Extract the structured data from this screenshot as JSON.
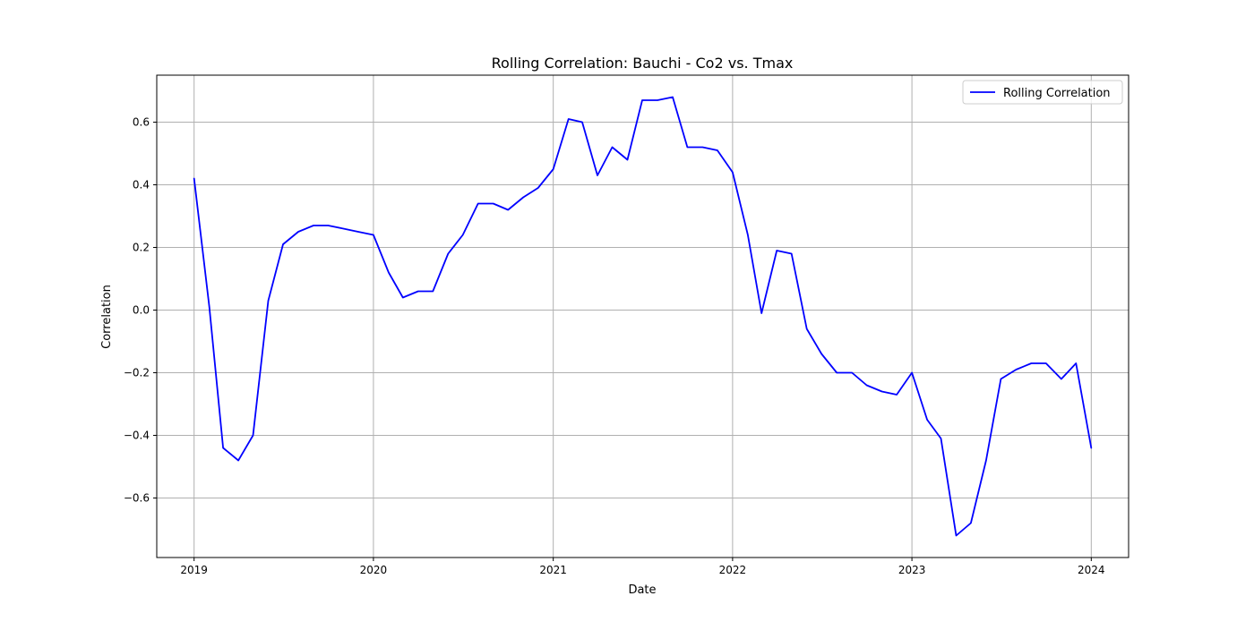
{
  "chart_data": {
    "type": "line",
    "title": "Rolling Correlation: Bauchi - Co2 vs. Tmax",
    "xlabel": "Date",
    "ylabel": "Correlation",
    "xlim": [
      "2018-10-17",
      "2024-03-17"
    ],
    "ylim": [
      -0.79,
      0.75
    ],
    "x_ticks": [
      "2019",
      "2020",
      "2021",
      "2022",
      "2023",
      "2024"
    ],
    "y_ticks": [
      "-0.6",
      "-0.4",
      "-0.2",
      "0.0",
      "0.2",
      "0.4",
      "0.6"
    ],
    "grid": true,
    "legend_position": "top-right",
    "series": [
      {
        "name": "Rolling Correlation",
        "color": "#0000ff",
        "x": [
          "2019-01-01",
          "2019-02-01",
          "2019-03-01",
          "2019-04-01",
          "2019-05-01",
          "2019-06-01",
          "2019-07-01",
          "2019-08-01",
          "2019-09-01",
          "2019-10-01",
          "2019-11-01",
          "2019-12-01",
          "2020-01-01",
          "2020-02-01",
          "2020-03-01",
          "2020-04-01",
          "2020-05-01",
          "2020-06-01",
          "2020-07-01",
          "2020-08-01",
          "2020-09-01",
          "2020-10-01",
          "2020-11-01",
          "2020-12-01",
          "2021-01-01",
          "2021-02-01",
          "2021-03-01",
          "2021-04-01",
          "2021-05-01",
          "2021-06-01",
          "2021-07-01",
          "2021-08-01",
          "2021-09-01",
          "2021-10-01",
          "2021-11-01",
          "2021-12-01",
          "2022-01-01",
          "2022-02-01",
          "2022-03-01",
          "2022-04-01",
          "2022-05-01",
          "2022-06-01",
          "2022-07-01",
          "2022-08-01",
          "2022-09-01",
          "2022-10-01",
          "2022-11-01",
          "2022-12-01",
          "2023-01-01",
          "2023-02-01",
          "2023-03-01",
          "2023-04-01",
          "2023-05-01",
          "2023-06-01",
          "2023-07-01",
          "2023-08-01",
          "2023-09-01",
          "2023-10-01",
          "2023-11-01",
          "2023-12-01",
          "2024-01-01"
        ],
        "y": [
          0.42,
          0.01,
          -0.44,
          -0.48,
          -0.4,
          0.03,
          0.21,
          0.25,
          0.27,
          0.27,
          0.26,
          0.25,
          0.24,
          0.12,
          0.04,
          0.06,
          0.06,
          0.18,
          0.24,
          0.34,
          0.34,
          0.32,
          0.36,
          0.39,
          0.45,
          0.61,
          0.6,
          0.43,
          0.52,
          0.48,
          0.67,
          0.67,
          0.68,
          0.52,
          0.52,
          0.51,
          0.44,
          0.24,
          -0.01,
          0.19,
          0.18,
          -0.06,
          -0.14,
          -0.2,
          -0.2,
          -0.24,
          -0.26,
          -0.27,
          -0.2,
          -0.35,
          -0.41,
          -0.72,
          -0.68,
          -0.48,
          -0.22,
          -0.19,
          -0.17,
          -0.17,
          -0.22,
          -0.17,
          -0.44
        ]
      }
    ]
  }
}
